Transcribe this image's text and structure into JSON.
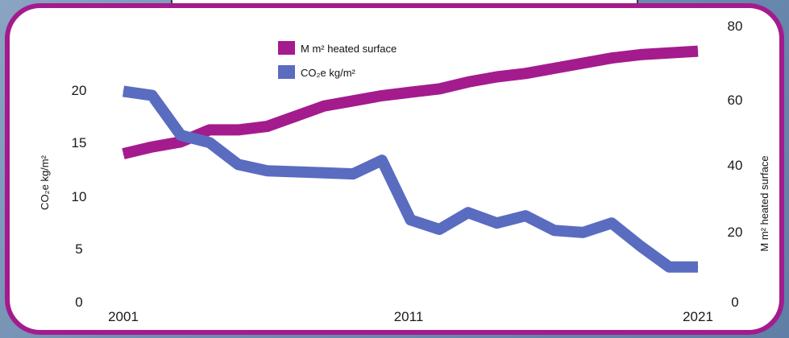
{
  "chart_data": {
    "type": "line",
    "x": [
      2001,
      2002,
      2003,
      2004,
      2005,
      2006,
      2007,
      2008,
      2009,
      2010,
      2011,
      2012,
      2013,
      2014,
      2015,
      2016,
      2017,
      2018,
      2019,
      2020,
      2021
    ],
    "x_ticks": [
      "2001",
      "2011",
      "2021"
    ],
    "x_tick_values": [
      2001,
      2011,
      2021
    ],
    "y_left_ticks": [
      "0",
      "5",
      "10",
      "15",
      "20"
    ],
    "y_left_tick_values": [
      0,
      5,
      10,
      15,
      20
    ],
    "y_right_ticks": [
      "0",
      "20",
      "40",
      "60",
      "80"
    ],
    "y_right_tick_values": [
      0,
      20,
      40,
      60,
      80
    ],
    "ylabel_left": "CO₂e kg/m²",
    "ylabel_right": "M m² heated surface",
    "ylim_left": [
      0,
      23
    ],
    "ylim_right": [
      0,
      80
    ],
    "legend_position": "top-center",
    "series": [
      {
        "name": "M m² heated surface",
        "axis": "right",
        "color": "#a41b8e",
        "values": [
          43.5,
          45.5,
          47,
          50.5,
          50.5,
          51.5,
          54.5,
          57.5,
          59,
          60.5,
          61.5,
          62.5,
          64.5,
          66,
          67,
          68.5,
          70,
          71.5,
          72.5,
          73,
          73.5
        ]
      },
      {
        "name": "CO₂e kg/m²",
        "axis": "left",
        "color": "#5a6cc0",
        "values": [
          20.2,
          19.8,
          16,
          15.3,
          13.2,
          12.6,
          12.5,
          12.4,
          12.3,
          13.6,
          7.9,
          7,
          8.6,
          7.6,
          8.3,
          6.9,
          6.7,
          7.6,
          5.4,
          3.4,
          3.4
        ]
      }
    ]
  }
}
